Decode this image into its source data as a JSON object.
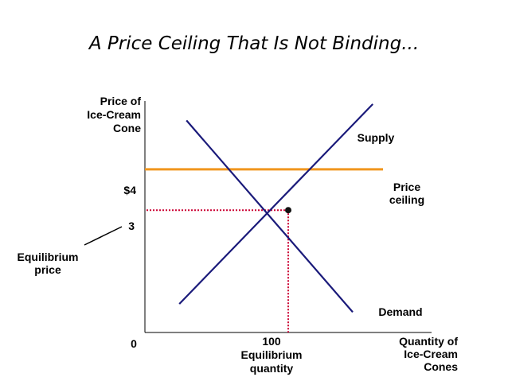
{
  "chart_data": {
    "type": "line",
    "title": "A Price Ceiling That Is Not Binding...",
    "ylabel": [
      "Price of",
      "Ice-Cream",
      "Cone"
    ],
    "xlabel": [
      "Quantity of",
      "Ice-Cream",
      "Cones"
    ],
    "x_ticks": [
      {
        "value": 0,
        "label": "0"
      },
      {
        "value": 100,
        "label": "100"
      }
    ],
    "y_ticks": [
      {
        "value": 4,
        "label": "$4"
      },
      {
        "value": 3,
        "label": "3"
      }
    ],
    "xlim": [
      0,
      200
    ],
    "ylim": [
      0,
      6.3
    ],
    "grid": false,
    "series": [
      {
        "name": "Supply",
        "color": "#1a1a7a",
        "points": [
          [
            24,
            0.7
          ],
          [
            159,
            5.6
          ]
        ]
      },
      {
        "name": "Demand",
        "color": "#1a1a7a",
        "points": [
          [
            29,
            5.2
          ],
          [
            145,
            0.5
          ]
        ]
      }
    ],
    "price_ceiling": {
      "value": 4,
      "label": [
        "Price",
        "ceiling"
      ],
      "color": "#f0961e"
    },
    "equilibrium": {
      "quantity": 100,
      "price": 3,
      "price_label": [
        "Equilibrium",
        "price"
      ],
      "quantity_label": [
        "Equilibrium",
        "quantity"
      ],
      "guide_color": "#cc0033"
    }
  }
}
